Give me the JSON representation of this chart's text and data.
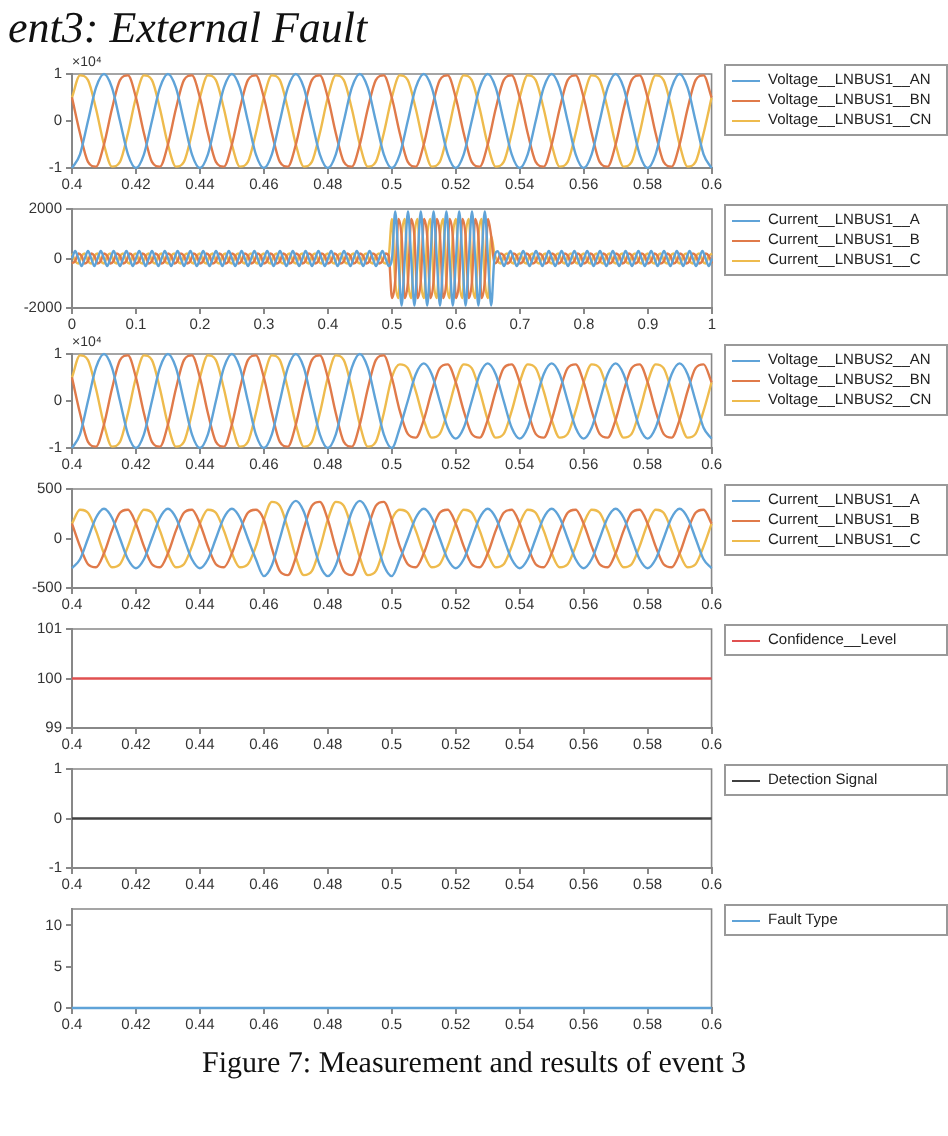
{
  "chart_data": [
    {
      "type": "line",
      "title": "ent3: External Fault",
      "ylabel": "×10⁴",
      "legend": "right",
      "xlim": [
        0.4,
        0.6
      ],
      "xticks": [
        0.4,
        0.42,
        0.44,
        0.46,
        0.48,
        0.5,
        0.52,
        0.54,
        0.56,
        0.58,
        0.6
      ],
      "ylim": [
        -1,
        1
      ],
      "yticks": [
        -1,
        0,
        1
      ],
      "x": [
        0.4,
        0.4025,
        0.405,
        0.4075,
        0.41,
        0.4125,
        0.415,
        0.4175,
        0.42,
        0.4225,
        0.425,
        0.4275,
        0.43,
        0.4325,
        0.435,
        0.4375,
        0.44,
        0.4425,
        0.445,
        0.4475,
        0.45,
        0.4525,
        0.455,
        0.4575,
        0.46,
        0.4625,
        0.465,
        0.4675,
        0.47,
        0.4725,
        0.475,
        0.4775,
        0.48,
        0.4825,
        0.485,
        0.4875,
        0.49,
        0.4925,
        0.495,
        0.4975,
        0.5,
        0.5025,
        0.505,
        0.5075,
        0.51,
        0.5125,
        0.515,
        0.5175,
        0.52,
        0.5225,
        0.525,
        0.5275,
        0.53,
        0.5325,
        0.535,
        0.5375,
        0.54,
        0.5425,
        0.545,
        0.5475,
        0.55,
        0.5525,
        0.555,
        0.5575,
        0.56,
        0.5625,
        0.565,
        0.5675,
        0.57,
        0.5725,
        0.575,
        0.5775,
        0.58,
        0.5825,
        0.585,
        0.5875,
        0.59,
        0.5925,
        0.595,
        0.5975,
        0.6
      ],
      "series": [
        {
          "name": "Voltage__LNBUS1__AN",
          "color": "#5fa3d8",
          "values": [
            -1,
            -0.71,
            0,
            0.71,
            1,
            0.71,
            0,
            -0.71,
            -1,
            -0.71,
            0,
            0.71,
            1,
            0.71,
            0,
            -0.71,
            -1,
            -0.71,
            0,
            0.71,
            1,
            0.71,
            0,
            -0.71,
            -1,
            -0.71,
            0,
            0.71,
            1,
            0.71,
            0,
            -0.71,
            -1,
            -0.71,
            0,
            0.71,
            1,
            0.71,
            0,
            -0.71,
            -1,
            -0.71,
            0,
            0.71,
            1,
            0.71,
            0,
            -0.71,
            -1,
            -0.71,
            0,
            0.71,
            1,
            0.71,
            0,
            -0.71,
            -1,
            -0.71,
            0,
            0.71,
            1,
            0.71,
            0,
            -0.71,
            -1,
            -0.71,
            0,
            0.71,
            1,
            0.71,
            0,
            -0.71,
            -1,
            -0.71,
            0,
            0.71,
            1,
            0.71,
            0,
            -0.71,
            -1
          ]
        },
        {
          "name": "Voltage__LNBUS1__BN",
          "color": "#e07a4a",
          "values": [
            0.5,
            -0.26,
            -0.87,
            -0.97,
            -0.5,
            0.26,
            0.87,
            0.97,
            0.5,
            -0.26,
            -0.87,
            -0.97,
            -0.5,
            0.26,
            0.87,
            0.97,
            0.5,
            -0.26,
            -0.87,
            -0.97,
            -0.5,
            0.26,
            0.87,
            0.97,
            0.5,
            -0.26,
            -0.87,
            -0.97,
            -0.5,
            0.26,
            0.87,
            0.97,
            0.5,
            -0.26,
            -0.87,
            -0.97,
            -0.5,
            0.26,
            0.87,
            0.97,
            0.5,
            -0.26,
            -0.87,
            -0.97,
            -0.5,
            0.26,
            0.87,
            0.97,
            0.5,
            -0.26,
            -0.87,
            -0.97,
            -0.5,
            0.26,
            0.87,
            0.97,
            0.5,
            -0.26,
            -0.87,
            -0.97,
            -0.5,
            0.26,
            0.87,
            0.97,
            0.5,
            -0.26,
            -0.87,
            -0.97,
            -0.5,
            0.26,
            0.87,
            0.97,
            0.5,
            -0.26,
            -0.87,
            -0.97,
            -0.5,
            0.26,
            0.87,
            0.97,
            0.5
          ]
        },
        {
          "name": "Voltage__LNBUS1__CN",
          "color": "#eebb4d",
          "values": [
            0.5,
            0.97,
            0.87,
            0.26,
            -0.5,
            -0.97,
            -0.87,
            -0.26,
            0.5,
            0.97,
            0.87,
            0.26,
            -0.5,
            -0.97,
            -0.87,
            -0.26,
            0.5,
            0.97,
            0.87,
            0.26,
            -0.5,
            -0.97,
            -0.87,
            -0.26,
            0.5,
            0.97,
            0.87,
            0.26,
            -0.5,
            -0.97,
            -0.87,
            -0.26,
            0.5,
            0.97,
            0.87,
            0.26,
            -0.5,
            -0.97,
            -0.87,
            -0.26,
            0.5,
            0.97,
            0.87,
            0.26,
            -0.5,
            -0.97,
            -0.87,
            -0.26,
            0.5,
            0.97,
            0.87,
            0.26,
            -0.5,
            -0.97,
            -0.87,
            -0.26,
            0.5,
            0.97,
            0.87,
            0.26,
            -0.5,
            -0.97,
            -0.87,
            -0.26,
            0.5,
            0.97,
            0.87,
            0.26,
            -0.5,
            -0.97,
            -0.87,
            -0.26,
            0.5,
            0.97,
            0.87,
            0.26,
            -0.5,
            -0.97,
            -0.87,
            -0.26,
            0.5
          ]
        }
      ]
    },
    {
      "type": "line",
      "legend": "right",
      "xlim": [
        0,
        1
      ],
      "xticks": [
        0,
        0.1,
        0.2,
        0.3,
        0.4,
        0.5,
        0.6,
        0.7,
        0.8,
        0.9,
        1
      ],
      "ylim": [
        -2000,
        2000
      ],
      "yticks": [
        -2000,
        0,
        2000
      ],
      "x": [
        0,
        0.005,
        0.01,
        0.015,
        0.02,
        0.025,
        0.03,
        0.035,
        0.04,
        0.045,
        0.05,
        0.055,
        0.06,
        0.065,
        0.07,
        0.075,
        0.08,
        0.085,
        0.09,
        0.095,
        0.1,
        0.105,
        0.11,
        0.115,
        0.12,
        0.125,
        0.13,
        0.135,
        0.14,
        0.145,
        0.15,
        0.155,
        0.16,
        0.165,
        0.17,
        0.175,
        0.18,
        0.185,
        0.19,
        0.195,
        0.2,
        0.205,
        0.21,
        0.215,
        0.22,
        0.225,
        0.23,
        0.235,
        0.24,
        0.245,
        0.25,
        0.255,
        0.26,
        0.265,
        0.27,
        0.275,
        0.28,
        0.285,
        0.29,
        0.295,
        0.3,
        0.305,
        0.31,
        0.315,
        0.32,
        0.325,
        0.33,
        0.335,
        0.34,
        0.345,
        0.35,
        0.355,
        0.36,
        0.365,
        0.37,
        0.375,
        0.38,
        0.385,
        0.39,
        0.395,
        0.4,
        0.405,
        0.41,
        0.415,
        0.42,
        0.425,
        0.43,
        0.435,
        0.44,
        0.445,
        0.45,
        0.455,
        0.46,
        0.465,
        0.47,
        0.475,
        0.48,
        0.485,
        0.49,
        0.495,
        0.5,
        0.505,
        0.51,
        0.515,
        0.52,
        0.525,
        0.53,
        0.535,
        0.54,
        0.545,
        0.55,
        0.555,
        0.56,
        0.565,
        0.57,
        0.575,
        0.58,
        0.585,
        0.59,
        0.595,
        0.6,
        0.605,
        0.61,
        0.615,
        0.62,
        0.625,
        0.63,
        0.635,
        0.64,
        0.645,
        0.65,
        0.655,
        0.66,
        0.665,
        0.67,
        0.675,
        0.68,
        0.685,
        0.69,
        0.695,
        0.7,
        0.705,
        0.71,
        0.715,
        0.72,
        0.725,
        0.73,
        0.735,
        0.74,
        0.745,
        0.75,
        0.755,
        0.76,
        0.765,
        0.77,
        0.775,
        0.78,
        0.785,
        0.79,
        0.795,
        0.8,
        0.805,
        0.81,
        0.815,
        0.82,
        0.825,
        0.83,
        0.835,
        0.84,
        0.845,
        0.85,
        0.855,
        0.86,
        0.865,
        0.87,
        0.875,
        0.88,
        0.885,
        0.89,
        0.895,
        0.9,
        0.905,
        0.91,
        0.915,
        0.92,
        0.925,
        0.93,
        0.935,
        0.94,
        0.945,
        0.95,
        0.955,
        0.96,
        0.965,
        0.97,
        0.975,
        0.98,
        0.985,
        0.99,
        0.995,
        1
      ],
      "series": [
        {
          "name": "Current__LNBUS1__A",
          "color": "#5fa3d8",
          "values": [
            0,
            300,
            0,
            -300,
            0,
            300,
            0,
            -300,
            0,
            300,
            0,
            -300,
            0,
            300,
            0,
            -300,
            0,
            300,
            0,
            -300,
            0,
            300,
            0,
            -300,
            0,
            300,
            0,
            -300,
            0,
            300,
            0,
            -300,
            0,
            300,
            0,
            -300,
            0,
            300,
            0,
            -300,
            0,
            300,
            0,
            -300,
            0,
            300,
            0,
            -300,
            0,
            300,
            0,
            -300,
            0,
            300,
            0,
            -300,
            0,
            300,
            0,
            -300,
            0,
            300,
            0,
            -300,
            0,
            300,
            0,
            -300,
            0,
            300,
            0,
            -300,
            0,
            300,
            0,
            -300,
            0,
            300,
            0,
            -300,
            0,
            300,
            0,
            -300,
            0,
            300,
            0,
            -300,
            0,
            300,
            0,
            -300,
            0,
            300,
            0,
            -300,
            0,
            300,
            0,
            -300,
            0,
            1900,
            0,
            -1900,
            0,
            1900,
            0,
            -1900,
            0,
            1900,
            0,
            -1900,
            0,
            1900,
            0,
            -1900,
            0,
            1900,
            0,
            -1900,
            0,
            1900,
            0,
            -1900,
            0,
            1900,
            0,
            -1900,
            0,
            1900,
            0,
            -1900,
            0,
            300,
            0,
            -300,
            0,
            300,
            0,
            -300,
            0,
            300,
            0,
            -300,
            0,
            300,
            0,
            -300,
            0,
            300,
            0,
            -300,
            0,
            300,
            0,
            -300,
            0,
            300,
            0,
            -300,
            0,
            300,
            0,
            -300,
            0,
            300,
            0,
            -300,
            0,
            300,
            0,
            -300,
            0,
            300,
            0,
            -300,
            0,
            300,
            0,
            -300,
            0,
            300,
            0,
            -300,
            0,
            300,
            0,
            -300,
            0,
            300,
            0,
            -300,
            0,
            300,
            0,
            -300,
            0,
            300,
            0,
            -300,
            0
          ]
        },
        {
          "name": "Current__LNBUS1__B",
          "color": "#e07a4a",
          "values": [
            -200,
            -100,
            200,
            100,
            -200,
            -100,
            200,
            100,
            -200,
            -100,
            200,
            100,
            -200,
            -100,
            200,
            100,
            -200,
            -100,
            200,
            100,
            -200,
            -100,
            200,
            100,
            -200,
            -100,
            200,
            100,
            -200,
            -100,
            200,
            100,
            -200,
            -100,
            200,
            100,
            -200,
            -100,
            200,
            100,
            -200,
            -100,
            200,
            100,
            -200,
            -100,
            200,
            100,
            -200,
            -100,
            200,
            100,
            -200,
            -100,
            200,
            100,
            -200,
            -100,
            200,
            100,
            -200,
            -100,
            200,
            100,
            -200,
            -100,
            200,
            100,
            -200,
            -100,
            200,
            100,
            -200,
            -100,
            200,
            100,
            -200,
            -100,
            200,
            100,
            -200,
            -100,
            200,
            100,
            -200,
            -100,
            200,
            100,
            -200,
            -100,
            200,
            100,
            -200,
            -100,
            200,
            100,
            -200,
            -100,
            200,
            100,
            -1600,
            -900,
            1600,
            900,
            -1600,
            -900,
            1600,
            900,
            -1600,
            -900,
            1600,
            900,
            -1600,
            -900,
            1600,
            900,
            -1600,
            -900,
            1600,
            900,
            -1600,
            -900,
            1600,
            900,
            -1600,
            -900,
            1600,
            900,
            -1600,
            -900,
            1600,
            900,
            -200,
            -100,
            200,
            100,
            -200,
            -100,
            200,
            100,
            -200,
            -100,
            200,
            100,
            -200,
            -100,
            200,
            100,
            -200,
            -100,
            200,
            100,
            -200,
            -100,
            200,
            100,
            -200,
            -100,
            200,
            100,
            -200,
            -100,
            200,
            100,
            -200,
            -100,
            200,
            100,
            -200,
            -100,
            200,
            100,
            -200,
            -100,
            200,
            100,
            -200,
            -100,
            200,
            100,
            -200,
            -100,
            200,
            100,
            -200,
            -100,
            200,
            100,
            -200,
            -100,
            200,
            100,
            -200,
            -100,
            200,
            100,
            -200,
            -100,
            200,
            100,
            -200
          ]
        },
        {
          "name": "Current__LNBUS1__C",
          "color": "#eebb4d",
          "values": [
            200,
            -100,
            -200,
            100,
            200,
            -100,
            -200,
            100,
            200,
            -100,
            -200,
            100,
            200,
            -100,
            -200,
            100,
            200,
            -100,
            -200,
            100,
            200,
            -100,
            -200,
            100,
            200,
            -100,
            -200,
            100,
            200,
            -100,
            -200,
            100,
            200,
            -100,
            -200,
            100,
            200,
            -100,
            -200,
            100,
            200,
            -100,
            -200,
            100,
            200,
            -100,
            -200,
            100,
            200,
            -100,
            -200,
            100,
            200,
            -100,
            -200,
            100,
            200,
            -100,
            -200,
            100,
            200,
            -100,
            -200,
            100,
            200,
            -100,
            -200,
            100,
            200,
            -100,
            -200,
            100,
            200,
            -100,
            -200,
            100,
            200,
            -100,
            -200,
            100,
            200,
            -100,
            -200,
            100,
            200,
            -100,
            -200,
            100,
            200,
            -100,
            -200,
            100,
            200,
            -100,
            -200,
            100,
            200,
            -100,
            -200,
            100,
            1600,
            -900,
            -1600,
            900,
            1600,
            -900,
            -1600,
            900,
            1600,
            -900,
            -1600,
            900,
            1600,
            -900,
            -1600,
            900,
            1600,
            -900,
            -1600,
            900,
            1600,
            -900,
            -1600,
            900,
            1600,
            -900,
            -1600,
            900,
            1600,
            -900,
            -1600,
            900,
            200,
            -100,
            -200,
            100,
            200,
            -100,
            -200,
            100,
            200,
            -100,
            -200,
            100,
            200,
            -100,
            -200,
            100,
            200,
            -100,
            -200,
            100,
            200,
            -100,
            -200,
            100,
            200,
            -100,
            -200,
            100,
            200,
            -100,
            -200,
            100,
            200,
            -100,
            -200,
            100,
            200,
            -100,
            -200,
            100,
            200,
            -100,
            -200,
            100,
            200,
            -100,
            -200,
            100,
            200,
            -100,
            -200,
            100,
            200,
            -100,
            -200,
            100,
            200,
            -100,
            -200,
            100,
            200,
            -100,
            -200,
            100,
            200,
            -100,
            -200,
            100,
            200
          ]
        }
      ]
    },
    {
      "type": "line",
      "ylabel": "×10⁴",
      "legend": "right",
      "xlim": [
        0.4,
        0.6
      ],
      "xticks": [
        0.4,
        0.42,
        0.44,
        0.46,
        0.48,
        0.5,
        0.52,
        0.54,
        0.56,
        0.58,
        0.6
      ],
      "ylim": [
        -1,
        1
      ],
      "yticks": [
        -1,
        0,
        1
      ],
      "x": [
        0.4,
        0.4025,
        0.405,
        0.4075,
        0.41,
        0.4125,
        0.415,
        0.4175,
        0.42,
        0.4225,
        0.425,
        0.4275,
        0.43,
        0.4325,
        0.435,
        0.4375,
        0.44,
        0.4425,
        0.445,
        0.4475,
        0.45,
        0.4525,
        0.455,
        0.4575,
        0.46,
        0.4625,
        0.465,
        0.4675,
        0.47,
        0.4725,
        0.475,
        0.4775,
        0.48,
        0.4825,
        0.485,
        0.4875,
        0.49,
        0.4925,
        0.495,
        0.4975,
        0.5,
        0.5025,
        0.505,
        0.5075,
        0.51,
        0.5125,
        0.515,
        0.5175,
        0.52,
        0.5225,
        0.525,
        0.5275,
        0.53,
        0.5325,
        0.535,
        0.5375,
        0.54,
        0.5425,
        0.545,
        0.5475,
        0.55,
        0.5525,
        0.555,
        0.5575,
        0.56,
        0.5625,
        0.565,
        0.5675,
        0.57,
        0.5725,
        0.575,
        0.5775,
        0.58,
        0.5825,
        0.585,
        0.5875,
        0.59,
        0.5925,
        0.595,
        0.5975,
        0.6
      ],
      "series": [
        {
          "name": "Voltage__LNBUS2__AN",
          "color": "#5fa3d8",
          "values": [
            -1,
            -0.71,
            0,
            0.71,
            1,
            0.71,
            0,
            -0.71,
            -1,
            -0.71,
            0,
            0.71,
            1,
            0.71,
            0,
            -0.71,
            -1,
            -0.71,
            0,
            0.71,
            1,
            0.71,
            0,
            -0.71,
            -1,
            -0.71,
            0,
            0.71,
            1,
            0.71,
            0,
            -0.71,
            -1,
            -0.71,
            0,
            0.71,
            1,
            0.71,
            0,
            -0.71,
            -1,
            -0.57,
            0,
            0.57,
            0.8,
            0.57,
            0,
            -0.57,
            -0.8,
            -0.57,
            0,
            0.57,
            0.8,
            0.57,
            0,
            -0.57,
            -0.8,
            -0.57,
            0,
            0.57,
            0.8,
            0.57,
            0,
            -0.57,
            -0.8,
            -0.57,
            0,
            0.57,
            0.8,
            0.57,
            0,
            -0.57,
            -0.8,
            -0.57,
            0,
            0.57,
            0.8,
            0.57,
            0,
            -0.57,
            -0.8
          ]
        },
        {
          "name": "Voltage__LNBUS2__BN",
          "color": "#e07a4a",
          "values": [
            0.5,
            -0.26,
            -0.87,
            -0.97,
            -0.5,
            0.26,
            0.87,
            0.97,
            0.5,
            -0.26,
            -0.87,
            -0.97,
            -0.5,
            0.26,
            0.87,
            0.97,
            0.5,
            -0.26,
            -0.87,
            -0.97,
            -0.5,
            0.26,
            0.87,
            0.97,
            0.5,
            -0.26,
            -0.87,
            -0.97,
            -0.5,
            0.26,
            0.87,
            0.97,
            0.5,
            -0.26,
            -0.87,
            -0.97,
            -0.5,
            0.26,
            0.87,
            0.97,
            0.5,
            -0.21,
            -0.7,
            -0.78,
            -0.4,
            0.21,
            0.7,
            0.78,
            0.4,
            -0.21,
            -0.7,
            -0.78,
            -0.4,
            0.21,
            0.7,
            0.78,
            0.4,
            -0.21,
            -0.7,
            -0.78,
            -0.4,
            0.21,
            0.7,
            0.78,
            0.4,
            -0.21,
            -0.7,
            -0.78,
            -0.4,
            0.21,
            0.7,
            0.78,
            0.4,
            -0.21,
            -0.7,
            -0.78,
            -0.4,
            0.21,
            0.7,
            0.78,
            0.4
          ]
        },
        {
          "name": "Voltage__LNBUS2__CN",
          "color": "#eebb4d",
          "values": [
            0.5,
            0.97,
            0.87,
            0.26,
            -0.5,
            -0.97,
            -0.87,
            -0.26,
            0.5,
            0.97,
            0.87,
            0.26,
            -0.5,
            -0.97,
            -0.87,
            -0.26,
            0.5,
            0.97,
            0.87,
            0.26,
            -0.5,
            -0.97,
            -0.87,
            -0.26,
            0.5,
            0.97,
            0.87,
            0.26,
            -0.5,
            -0.97,
            -0.87,
            -0.26,
            0.5,
            0.97,
            0.87,
            0.26,
            -0.5,
            -0.97,
            -0.87,
            -0.26,
            0.5,
            0.78,
            0.7,
            0.21,
            -0.4,
            -0.78,
            -0.7,
            -0.21,
            0.4,
            0.78,
            0.7,
            0.21,
            -0.4,
            -0.78,
            -0.7,
            -0.21,
            0.4,
            0.78,
            0.7,
            0.21,
            -0.4,
            -0.78,
            -0.7,
            -0.21,
            0.4,
            0.78,
            0.7,
            0.21,
            -0.4,
            -0.78,
            -0.7,
            -0.21,
            0.4,
            0.78,
            0.7,
            0.21,
            -0.4,
            -0.78,
            -0.7,
            -0.21,
            0.4
          ]
        }
      ]
    },
    {
      "type": "line",
      "legend": "right",
      "xlim": [
        0.4,
        0.6
      ],
      "xticks": [
        0.4,
        0.42,
        0.44,
        0.46,
        0.48,
        0.5,
        0.52,
        0.54,
        0.56,
        0.58,
        0.6
      ],
      "ylim": [
        -500,
        500
      ],
      "yticks": [
        -500,
        0,
        500
      ],
      "x": [
        0.4,
        0.4025,
        0.405,
        0.4075,
        0.41,
        0.4125,
        0.415,
        0.4175,
        0.42,
        0.4225,
        0.425,
        0.4275,
        0.43,
        0.4325,
        0.435,
        0.4375,
        0.44,
        0.4425,
        0.445,
        0.4475,
        0.45,
        0.4525,
        0.455,
        0.4575,
        0.46,
        0.4625,
        0.465,
        0.4675,
        0.47,
        0.4725,
        0.475,
        0.4775,
        0.48,
        0.4825,
        0.485,
        0.4875,
        0.49,
        0.4925,
        0.495,
        0.4975,
        0.5,
        0.5025,
        0.505,
        0.5075,
        0.51,
        0.5125,
        0.515,
        0.5175,
        0.52,
        0.5225,
        0.525,
        0.5275,
        0.53,
        0.5325,
        0.535,
        0.5375,
        0.54,
        0.5425,
        0.545,
        0.5475,
        0.55,
        0.5525,
        0.555,
        0.5575,
        0.56,
        0.5625,
        0.565,
        0.5675,
        0.57,
        0.5725,
        0.575,
        0.5775,
        0.58,
        0.5825,
        0.585,
        0.5875,
        0.59,
        0.5925,
        0.595,
        0.5975,
        0.6
      ],
      "series": [
        {
          "name": "Current__LNBUS1__A",
          "color": "#5fa3d8",
          "values": [
            -300,
            -210,
            0,
            210,
            300,
            210,
            0,
            -210,
            -300,
            -210,
            0,
            210,
            300,
            210,
            0,
            -210,
            -300,
            -210,
            0,
            210,
            300,
            210,
            0,
            -210,
            -380,
            -270,
            0,
            270,
            380,
            270,
            0,
            -270,
            -380,
            -270,
            0,
            270,
            380,
            270,
            0,
            -270,
            -380,
            -210,
            0,
            210,
            300,
            210,
            0,
            -210,
            -300,
            -210,
            0,
            210,
            300,
            210,
            0,
            -210,
            -300,
            -210,
            0,
            210,
            300,
            210,
            0,
            -210,
            -300,
            -210,
            0,
            210,
            300,
            210,
            0,
            -210,
            -300,
            -210,
            0,
            210,
            300,
            210,
            0,
            -210,
            -300
          ]
        },
        {
          "name": "Current__LNBUS1__B",
          "color": "#e07a4a",
          "values": [
            150,
            -80,
            -260,
            -290,
            -150,
            80,
            260,
            290,
            150,
            -80,
            -260,
            -290,
            -150,
            80,
            260,
            290,
            150,
            -80,
            -260,
            -290,
            -150,
            80,
            260,
            290,
            190,
            -100,
            -330,
            -370,
            -190,
            100,
            330,
            370,
            190,
            -100,
            -330,
            -370,
            -190,
            100,
            330,
            370,
            190,
            -80,
            -260,
            -290,
            -150,
            80,
            260,
            290,
            150,
            -80,
            -260,
            -290,
            -150,
            80,
            260,
            290,
            150,
            -80,
            -260,
            -290,
            -150,
            80,
            260,
            290,
            150,
            -80,
            -260,
            -290,
            -150,
            80,
            260,
            290,
            150,
            -80,
            -260,
            -290,
            -150,
            80,
            260,
            290,
            150
          ]
        },
        {
          "name": "Current__LNBUS1__C",
          "color": "#eebb4d",
          "values": [
            150,
            290,
            260,
            80,
            -150,
            -290,
            -260,
            -80,
            150,
            290,
            260,
            80,
            -150,
            -290,
            -260,
            -80,
            150,
            290,
            260,
            80,
            -150,
            -290,
            -260,
            -80,
            190,
            370,
            330,
            100,
            -190,
            -370,
            -330,
            -100,
            190,
            370,
            330,
            100,
            -190,
            -370,
            -330,
            -100,
            190,
            290,
            260,
            80,
            -150,
            -290,
            -260,
            -80,
            150,
            290,
            260,
            80,
            -150,
            -290,
            -260,
            -80,
            150,
            290,
            260,
            80,
            -150,
            -290,
            -260,
            -80,
            150,
            290,
            260,
            80,
            -150,
            -290,
            -260,
            -80,
            150,
            290,
            260,
            80,
            -150,
            -290,
            -260,
            -80,
            150
          ]
        }
      ]
    },
    {
      "type": "line",
      "legend": "right",
      "xlim": [
        0.4,
        0.6
      ],
      "xticks": [
        0.4,
        0.42,
        0.44,
        0.46,
        0.48,
        0.5,
        0.52,
        0.54,
        0.56,
        0.58,
        0.6
      ],
      "ylim": [
        99,
        101
      ],
      "yticks": [
        99,
        100,
        101
      ],
      "x": [
        0.4,
        0.6
      ],
      "series": [
        {
          "name": "Confidence__Level",
          "color": "#e05050",
          "values": [
            100,
            100
          ]
        }
      ]
    },
    {
      "type": "line",
      "legend": "right",
      "xlim": [
        0.4,
        0.6
      ],
      "xticks": [
        0.4,
        0.42,
        0.44,
        0.46,
        0.48,
        0.5,
        0.52,
        0.54,
        0.56,
        0.58,
        0.6
      ],
      "ylim": [
        -1,
        1
      ],
      "yticks": [
        -1,
        0,
        1
      ],
      "x": [
        0.4,
        0.6
      ],
      "series": [
        {
          "name": "Detection Signal",
          "color": "#404040",
          "values": [
            0,
            0
          ]
        }
      ]
    },
    {
      "type": "line",
      "legend": "right",
      "xlim": [
        0.4,
        0.6
      ],
      "xticks": [
        0.4,
        0.42,
        0.44,
        0.46,
        0.48,
        0.5,
        0.52,
        0.54,
        0.56,
        0.58,
        0.6
      ],
      "ylim": [
        0,
        12
      ],
      "yticks": [
        0,
        5,
        10
      ],
      "x": [
        0.4,
        0.6
      ],
      "series": [
        {
          "name": "Fault Type",
          "color": "#5fa3d8",
          "values": [
            0,
            0
          ]
        }
      ],
      "annotations": [
        "Figure 7: Measurement and results of event 3"
      ]
    }
  ]
}
